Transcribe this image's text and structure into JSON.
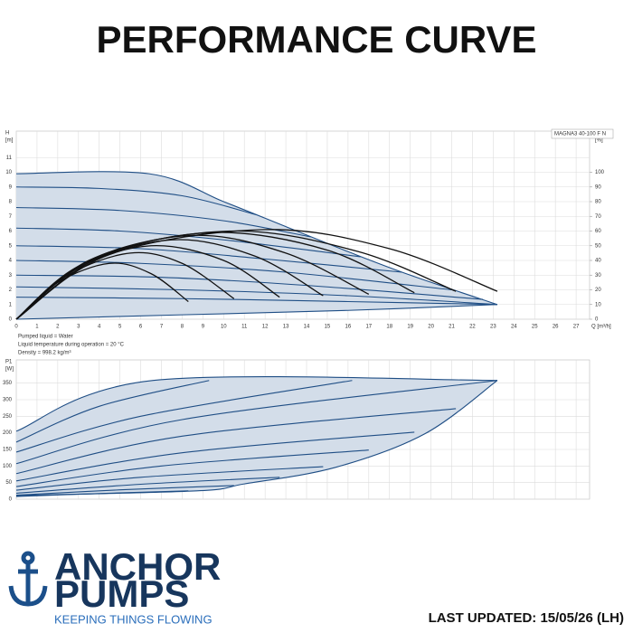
{
  "header": {
    "title": "PERFORMANCE CURVE"
  },
  "chart_data": [
    {
      "type": "line",
      "ylabel": "H",
      "yunit": "[m]",
      "y2label": "eta",
      "y2unit": "[%]",
      "xlabel": "Q [m³/h]",
      "annotation": "MAGNA3 40-100 F N",
      "xlim": [
        0,
        27.65
      ],
      "xticks": [
        0,
        1,
        2,
        3,
        4,
        5,
        6,
        7,
        8,
        9,
        10,
        11,
        12,
        13,
        14,
        15,
        16,
        17,
        18,
        19,
        20,
        21,
        22,
        23,
        24,
        25,
        26,
        27
      ],
      "xtick_labels": true,
      "ylim": [
        0,
        12.8
      ],
      "yticks": [
        0,
        1,
        2,
        3,
        4,
        5,
        6,
        7,
        8,
        9,
        10,
        11
      ],
      "y2lim": [
        0,
        128
      ],
      "y2ticks": [
        0,
        10,
        20,
        30,
        40,
        50,
        60,
        70,
        80,
        90,
        100
      ],
      "grid": true,
      "shade": "#d3dde9",
      "series": [
        {
          "color": "#1f4e85",
          "x": [
            0,
            6.4,
            10,
            13,
            16,
            19,
            23.2
          ],
          "values": [
            9.9,
            9.9,
            8.0,
            6.3,
            4.6,
            3.0,
            1.0
          ]
        },
        {
          "color": "#1f4e85",
          "x": [
            0,
            4,
            8,
            11.6
          ],
          "values": [
            9.0,
            8.9,
            8.4,
            7.1
          ]
        },
        {
          "color": "#1f4e85",
          "x": [
            0,
            5,
            10,
            14.2
          ],
          "values": [
            7.6,
            7.4,
            6.7,
            5.6
          ]
        },
        {
          "color": "#1f4e85",
          "x": [
            0,
            5,
            10,
            16.6
          ],
          "values": [
            6.2,
            6.0,
            5.4,
            4.25
          ]
        },
        {
          "color": "#1f4e85",
          "x": [
            0,
            6,
            12,
            18.6
          ],
          "values": [
            5.0,
            4.8,
            4.1,
            3.2
          ]
        },
        {
          "color": "#1f4e85",
          "x": [
            0,
            6,
            13,
            21
          ],
          "values": [
            4.0,
            3.8,
            3.2,
            2.0
          ]
        },
        {
          "color": "#1f4e85",
          "x": [
            0,
            7,
            14,
            22.5
          ],
          "values": [
            3.0,
            2.85,
            2.3,
            1.35
          ]
        },
        {
          "color": "#1f4e85",
          "x": [
            0,
            8,
            16,
            23.2
          ],
          "values": [
            2.2,
            2.0,
            1.6,
            1.0
          ]
        },
        {
          "color": "#1f4e85",
          "x": [
            0,
            8,
            16,
            23.2
          ],
          "values": [
            1.5,
            1.4,
            1.2,
            1.0
          ]
        },
        {
          "color": "#1f4e85",
          "x": [
            0,
            8,
            16,
            23.2
          ],
          "values": [
            0,
            0.3,
            0.6,
            1.0
          ]
        },
        {
          "color": "#111111",
          "axis": "y2",
          "x": [
            0,
            2,
            4.5,
            6.5,
            8.3
          ],
          "values": [
            0,
            25,
            38,
            31,
            12
          ]
        },
        {
          "color": "#111111",
          "axis": "y2",
          "x": [
            0,
            2.5,
            5.5,
            8,
            10.5
          ],
          "values": [
            0,
            30,
            45,
            38,
            14
          ]
        },
        {
          "color": "#111111",
          "axis": "y2",
          "x": [
            0,
            3,
            6.5,
            10,
            12.7
          ],
          "values": [
            0,
            35,
            50,
            40,
            15
          ]
        },
        {
          "color": "#111111",
          "axis": "y2",
          "x": [
            0,
            3,
            7.5,
            11.5,
            14.8
          ],
          "values": [
            0,
            36,
            54,
            43,
            16
          ]
        },
        {
          "color": "#111111",
          "axis": "y2",
          "x": [
            0,
            3.5,
            8.5,
            13,
            17
          ],
          "values": [
            0,
            40,
            57,
            45,
            17
          ]
        },
        {
          "color": "#111111",
          "axis": "y2",
          "x": [
            0,
            4,
            9.5,
            15,
            19.2
          ],
          "values": [
            0,
            42,
            59,
            47,
            18
          ]
        },
        {
          "color": "#111111",
          "axis": "y2",
          "x": [
            0,
            4,
            10.5,
            16.5,
            21.2
          ],
          "values": [
            0,
            43,
            60,
            46,
            19
          ]
        },
        {
          "color": "#111111",
          "axis": "y2",
          "x": [
            0,
            4.5,
            12,
            18,
            23.2
          ],
          "values": [
            0,
            44,
            61,
            48,
            19
          ]
        }
      ]
    },
    {
      "type": "line",
      "ylabel": "P1",
      "yunit": "[W]",
      "xlim": [
        0,
        27.65
      ],
      "xticks": [
        0,
        1,
        2,
        3,
        4,
        5,
        6,
        7,
        8,
        9,
        10,
        11,
        12,
        13,
        14,
        15,
        16,
        17,
        18,
        19,
        20,
        21,
        22,
        23,
        24,
        25,
        26,
        27
      ],
      "xtick_labels": false,
      "ylim": [
        0,
        420
      ],
      "yticks": [
        0,
        50,
        100,
        150,
        200,
        250,
        300,
        350
      ],
      "grid": true,
      "shade": "#d3dde9",
      "series": [
        {
          "color": "#1f4e85",
          "x": [
            0,
            6.6,
            23.2
          ],
          "values": [
            205,
            358,
            358
          ]
        },
        {
          "color": "#1f4e85",
          "x": [
            0,
            4,
            9.3
          ],
          "values": [
            172,
            280,
            358
          ]
        },
        {
          "color": "#1f4e85",
          "x": [
            0,
            6,
            16.2
          ],
          "values": [
            142,
            250,
            358
          ]
        },
        {
          "color": "#1f4e85",
          "x": [
            0,
            8,
            23.2
          ],
          "values": [
            107,
            240,
            358
          ]
        },
        {
          "color": "#1f4e85",
          "x": [
            0,
            8,
            21.2
          ],
          "values": [
            77,
            190,
            273
          ]
        },
        {
          "color": "#1f4e85",
          "x": [
            0,
            8,
            19.2
          ],
          "values": [
            55,
            140,
            202
          ]
        },
        {
          "color": "#1f4e85",
          "x": [
            0,
            7,
            17
          ],
          "values": [
            38,
            100,
            148
          ]
        },
        {
          "color": "#1f4e85",
          "x": [
            0,
            6,
            14.8
          ],
          "values": [
            27,
            66,
            98
          ]
        },
        {
          "color": "#1f4e85",
          "x": [
            0,
            6,
            12.7
          ],
          "values": [
            18,
            45,
            66
          ]
        },
        {
          "color": "#1f4e85",
          "x": [
            0,
            5,
            10.5
          ],
          "values": [
            12,
            28,
            41
          ]
        },
        {
          "color": "#1f4e85",
          "x": [
            0,
            4,
            8.3
          ],
          "values": [
            8,
            17,
            25
          ]
        },
        {
          "color": "#1f4e85",
          "x": [
            0,
            8.7,
            11,
            15.4,
            19.7,
            23.2
          ],
          "values": [
            11,
            25,
            46,
            96,
            197,
            358
          ]
        }
      ]
    }
  ],
  "notes": [
    "Pumped liquid = Water",
    "Liquid temperature during operation = 20 °C",
    "Density = 998.2 kg/m³"
  ],
  "logo": {
    "line1": "ANCHOR",
    "line2": "PUMPS",
    "tagline": "KEEPING THINGS FLOWING"
  },
  "footer": "LAST UPDATED: 15/05/26 (LH)"
}
